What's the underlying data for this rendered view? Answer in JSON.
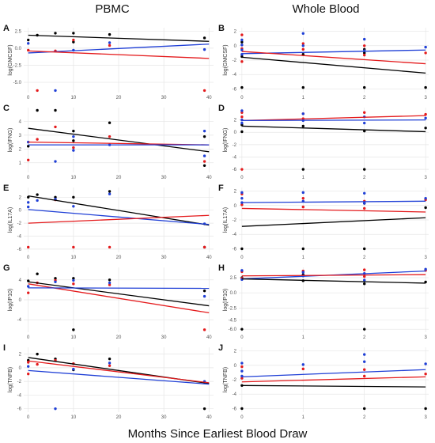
{
  "column_titles": [
    "PBMC",
    "Whole Blood"
  ],
  "x_axis_title": "Months Since Earliest Blood Draw",
  "colors": {
    "black": "#000000",
    "red": "#e41a1c",
    "blue": "#1f3fd6"
  },
  "chart_data": [
    {
      "panel": "A",
      "type": "scatter",
      "ylabel": "log(GMCSF)",
      "xlim": [
        -1,
        41
      ],
      "ylim": [
        -6.5,
        3
      ],
      "xticks": [
        0,
        10,
        20,
        30,
        40
      ],
      "yticks": [
        -5.0,
        -2.5,
        0.0,
        2.5
      ],
      "ytick_labels": [
        "-5.0",
        "-2.5",
        "0.0",
        "2.5"
      ],
      "lines": [
        {
          "color": "black",
          "x": [
            0,
            40
          ],
          "y": [
            1.9,
            1.0
          ]
        },
        {
          "color": "blue",
          "x": [
            0,
            40
          ],
          "y": [
            -0.7,
            0.6
          ]
        },
        {
          "color": "red",
          "x": [
            0,
            40
          ],
          "y": [
            -0.4,
            -1.5
          ]
        }
      ],
      "points": [
        {
          "color": "black",
          "x": [
            0,
            2,
            6,
            10,
            10,
            18,
            39
          ],
          "y": [
            1.2,
            1.9,
            2.2,
            2.2,
            0.9,
            2.0,
            1.5
          ]
        },
        {
          "color": "red",
          "x": [
            0,
            2,
            6,
            10,
            18,
            39
          ],
          "y": [
            -0.3,
            -6.2,
            -0.4,
            1.2,
            0.4,
            -6.2
          ]
        },
        {
          "color": "blue",
          "x": [
            0,
            6,
            10,
            18,
            39
          ],
          "y": [
            0.7,
            -6.2,
            -0.3,
            0.8,
            -0.2
          ]
        }
      ]
    },
    {
      "panel": "B",
      "type": "scatter",
      "ylabel": "log(GMCSF)",
      "xlim": [
        -0.05,
        3.05
      ],
      "ylim": [
        -6.5,
        2.5
      ],
      "xticks": [
        0,
        1,
        2,
        3
      ],
      "yticks": [
        -6,
        -4,
        -2,
        0,
        2
      ],
      "ytick_labels": [
        "-6",
        "-4",
        "-2",
        "0",
        "2"
      ],
      "lines": [
        {
          "color": "blue",
          "x": [
            0,
            3
          ],
          "y": [
            -1.1,
            -0.6
          ]
        },
        {
          "color": "red",
          "x": [
            0,
            3
          ],
          "y": [
            -0.8,
            -2.5
          ]
        },
        {
          "color": "black",
          "x": [
            0,
            3
          ],
          "y": [
            -1.6,
            -3.8
          ]
        }
      ],
      "points": [
        {
          "color": "black",
          "x": [
            0,
            0,
            0,
            1,
            1,
            2,
            2,
            2,
            3
          ],
          "y": [
            -5.8,
            -1.5,
            0.5,
            -5.8,
            -1.2,
            -5.8,
            -0.5,
            -1.0,
            -5.8
          ]
        },
        {
          "color": "red",
          "x": [
            0,
            0,
            0,
            1,
            1,
            2,
            2,
            3
          ],
          "y": [
            1.5,
            -0.4,
            -2.2,
            0.3,
            -0.5,
            0.0,
            -1.3,
            -1.0
          ]
        },
        {
          "color": "blue",
          "x": [
            0,
            0,
            0,
            0,
            1,
            1,
            2,
            2,
            3
          ],
          "y": [
            0.8,
            0.1,
            -0.6,
            -1.2,
            1.7,
            0.0,
            0.9,
            -0.7,
            -0.2
          ]
        }
      ]
    },
    {
      "panel": "C",
      "type": "scatter",
      "ylabel": "log(IFNG)",
      "xlim": [
        -1,
        41
      ],
      "ylim": [
        0.3,
        5
      ],
      "xticks": [
        0,
        10,
        20,
        30,
        40
      ],
      "yticks": [
        1,
        2,
        3,
        4
      ],
      "ytick_labels": [
        "1",
        "2",
        "3",
        "4"
      ],
      "lines": [
        {
          "color": "black",
          "x": [
            0,
            40
          ],
          "y": [
            3.5,
            1.8
          ]
        },
        {
          "color": "red",
          "x": [
            0,
            40
          ],
          "y": [
            2.5,
            2.3
          ]
        },
        {
          "color": "blue",
          "x": [
            0,
            40
          ],
          "y": [
            2.3,
            2.3
          ]
        }
      ],
      "points": [
        {
          "color": "black",
          "x": [
            0,
            2,
            6,
            10,
            10,
            18,
            39,
            39
          ],
          "y": [
            2.2,
            4.8,
            4.8,
            3.3,
            2.6,
            3.9,
            2.9,
            0.8
          ]
        },
        {
          "color": "red",
          "x": [
            0,
            2,
            6,
            10,
            18,
            39
          ],
          "y": [
            1.2,
            2.7,
            3.6,
            2.1,
            2.9,
            1.1
          ]
        },
        {
          "color": "blue",
          "x": [
            0,
            6,
            10,
            10,
            18,
            39,
            39
          ],
          "y": [
            2.5,
            1.1,
            2.9,
            1.9,
            2.3,
            3.3,
            1.5
          ]
        }
      ]
    },
    {
      "panel": "D",
      "type": "scatter",
      "ylabel": "log(IFNG)",
      "xlim": [
        -0.05,
        3.05
      ],
      "ylim": [
        -6.5,
        4
      ],
      "xticks": [
        0,
        1,
        2,
        3
      ],
      "yticks": [
        -6,
        -4,
        -2,
        0,
        2
      ],
      "ytick_labels": [
        "-6",
        "-4",
        "-2",
        "0",
        "2"
      ],
      "lines": [
        {
          "color": "red",
          "x": [
            0,
            3
          ],
          "y": [
            1.9,
            2.7
          ]
        },
        {
          "color": "blue",
          "x": [
            0,
            3
          ],
          "y": [
            1.9,
            2.0
          ]
        },
        {
          "color": "black",
          "x": [
            0,
            3
          ],
          "y": [
            1.0,
            0.1
          ]
        }
      ],
      "points": [
        {
          "color": "black",
          "x": [
            0,
            0,
            1,
            1,
            2,
            2,
            3
          ],
          "y": [
            1.2,
            0.1,
            -6.0,
            1.0,
            -6.0,
            0.2,
            0.7
          ]
        },
        {
          "color": "red",
          "x": [
            0,
            0,
            0,
            1,
            1,
            2,
            3
          ],
          "y": [
            -6.0,
            3.2,
            2.5,
            3.0,
            2.2,
            3.2,
            2.9
          ]
        },
        {
          "color": "blue",
          "x": [
            0,
            0,
            0,
            1,
            1,
            2,
            2,
            3
          ],
          "y": [
            3.5,
            2.0,
            1.5,
            3.0,
            1.9,
            2.5,
            1.5,
            2.3
          ]
        }
      ]
    },
    {
      "panel": "E",
      "type": "scatter",
      "ylabel": "log(IL17A)",
      "xlim": [
        -1,
        41
      ],
      "ylim": [
        -6.5,
        3.5
      ],
      "xticks": [
        0,
        10,
        20,
        30,
        40
      ],
      "yticks": [
        -6,
        -4,
        -2,
        0,
        2
      ],
      "ytick_labels": [
        "-6",
        "-4",
        "-2",
        "0",
        "2"
      ],
      "lines": [
        {
          "color": "black",
          "x": [
            0,
            40
          ],
          "y": [
            2.2,
            -2.3
          ]
        },
        {
          "color": "blue",
          "x": [
            0,
            40
          ],
          "y": [
            0.1,
            -2.2
          ]
        },
        {
          "color": "red",
          "x": [
            0,
            40
          ],
          "y": [
            -2.0,
            -0.8
          ]
        }
      ],
      "points": [
        {
          "color": "black",
          "x": [
            0,
            2,
            6,
            10,
            18,
            39
          ],
          "y": [
            2.0,
            2.4,
            2.0,
            2.0,
            2.9,
            -5.7
          ]
        },
        {
          "color": "red",
          "x": [
            0,
            6,
            10,
            18,
            39
          ],
          "y": [
            -5.7,
            1.6,
            -5.7,
            -5.7,
            -5.7
          ]
        },
        {
          "color": "blue",
          "x": [
            0,
            0,
            2,
            6,
            10,
            18,
            39
          ],
          "y": [
            1.2,
            0.5,
            1.5,
            1.7,
            0.6,
            2.5,
            -2.1
          ]
        }
      ]
    },
    {
      "panel": "F",
      "type": "scatter",
      "ylabel": "log(IL17A)",
      "xlim": [
        -0.05,
        3.05
      ],
      "ylim": [
        -6.5,
        2.5
      ],
      "xticks": [
        0,
        1,
        2,
        3
      ],
      "yticks": [
        -6,
        -4,
        -2,
        0,
        2
      ],
      "ytick_labels": [
        "-6",
        "-4",
        "-2",
        "0",
        "2"
      ],
      "lines": [
        {
          "color": "blue",
          "x": [
            0,
            3
          ],
          "y": [
            0.4,
            0.6
          ]
        },
        {
          "color": "red",
          "x": [
            0,
            3
          ],
          "y": [
            -0.4,
            -0.9
          ]
        },
        {
          "color": "black",
          "x": [
            0,
            3
          ],
          "y": [
            -2.9,
            -1.7
          ]
        }
      ],
      "points": [
        {
          "color": "black",
          "x": [
            0,
            1,
            2,
            2,
            3
          ],
          "y": [
            -6.0,
            -6.0,
            -6.0,
            0.3,
            -0.3
          ]
        },
        {
          "color": "red",
          "x": [
            0,
            0,
            1,
            1,
            2,
            2,
            3
          ],
          "y": [
            1.6,
            0.1,
            1.0,
            -0.2,
            0.6,
            -0.4,
            0.8
          ]
        },
        {
          "color": "blue",
          "x": [
            0,
            0,
            0,
            1,
            1,
            2,
            2,
            3
          ],
          "y": [
            1.8,
            1.0,
            0.4,
            1.8,
            0.6,
            1.7,
            0.3,
            1.0
          ]
        }
      ]
    },
    {
      "panel": "G",
      "type": "scatter",
      "ylabel": "log(IP10)",
      "xlim": [
        -1,
        41
      ],
      "ylim": [
        -6.5,
        6.5
      ],
      "xticks": [
        0,
        10,
        20,
        30,
        40
      ],
      "yticks": [
        -4,
        0,
        4
      ],
      "ytick_labels": [
        "-4",
        "0",
        "4"
      ],
      "lines": [
        {
          "color": "black",
          "x": [
            0,
            40
          ],
          "y": [
            3.6,
            -1.2
          ]
        },
        {
          "color": "red",
          "x": [
            0,
            40
          ],
          "y": [
            3.2,
            -2.6
          ]
        },
        {
          "color": "blue",
          "x": [
            0,
            40
          ],
          "y": [
            2.4,
            2.3
          ]
        }
      ],
      "points": [
        {
          "color": "black",
          "x": [
            0,
            2,
            6,
            10,
            10,
            18,
            39
          ],
          "y": [
            3.8,
            5.2,
            4.3,
            4.3,
            -6.0,
            4.0,
            1.8
          ]
        },
        {
          "color": "red",
          "x": [
            0,
            2,
            6,
            10,
            18,
            39
          ],
          "y": [
            1.4,
            3.4,
            3.9,
            3.2,
            3.0,
            -6.0
          ]
        },
        {
          "color": "blue",
          "x": [
            0,
            6,
            10,
            18,
            39
          ],
          "y": [
            2.7,
            3.6,
            3.9,
            3.4,
            0.7
          ]
        }
      ]
    },
    {
      "panel": "H",
      "type": "scatter",
      "ylabel": "log(IP10)",
      "xlim": [
        -0.05,
        3.05
      ],
      "ylim": [
        -6.5,
        4.2
      ],
      "xticks": [
        0,
        1,
        2,
        3
      ],
      "yticks": [
        -6.0,
        -4.5,
        -2.5,
        0.0,
        2.5
      ],
      "ytick_labels": [
        "-6.0",
        "-4.5",
        "-2.5",
        "0.0",
        "2.5"
      ],
      "lines": [
        {
          "color": "blue",
          "x": [
            0,
            3
          ],
          "y": [
            2.3,
            3.6
          ]
        },
        {
          "color": "red",
          "x": [
            0,
            3
          ],
          "y": [
            2.8,
            3.0
          ]
        },
        {
          "color": "black",
          "x": [
            0,
            3
          ],
          "y": [
            2.3,
            1.6
          ]
        }
      ],
      "points": [
        {
          "color": "black",
          "x": [
            0,
            0,
            1,
            1,
            2,
            2,
            3
          ],
          "y": [
            -6.0,
            2.5,
            3.0,
            2.0,
            -6.0,
            1.5,
            1.8
          ]
        },
        {
          "color": "red",
          "x": [
            0,
            0,
            1,
            2,
            2,
            3
          ],
          "y": [
            3.5,
            2.4,
            3.6,
            3.8,
            2.7,
            3.7
          ]
        },
        {
          "color": "blue",
          "x": [
            0,
            0,
            1,
            1,
            2,
            2,
            3
          ],
          "y": [
            3.7,
            2.2,
            2.8,
            3.4,
            3.2,
            2.1,
            3.9
          ]
        }
      ]
    },
    {
      "panel": "I",
      "type": "scatter",
      "ylabel": "log(TNFB)",
      "xlim": [
        -1,
        41
      ],
      "ylim": [
        -6.5,
        3
      ],
      "xticks": [
        0,
        10,
        20,
        30,
        40
      ],
      "yticks": [
        -6,
        -4,
        -2,
        0,
        2
      ],
      "ytick_labels": [
        "-6",
        "-4",
        "-2",
        "0",
        "2"
      ],
      "lines": [
        {
          "color": "black",
          "x": [
            0,
            40
          ],
          "y": [
            1.5,
            -2.3
          ]
        },
        {
          "color": "red",
          "x": [
            0,
            40
          ],
          "y": [
            1.0,
            -2.2
          ]
        },
        {
          "color": "blue",
          "x": [
            0,
            40
          ],
          "y": [
            -0.4,
            -2.4
          ]
        }
      ],
      "points": [
        {
          "color": "black",
          "x": [
            0,
            2,
            6,
            10,
            18,
            39
          ],
          "y": [
            1.1,
            2.0,
            1.3,
            -0.3,
            1.3,
            -6.0
          ]
        },
        {
          "color": "red",
          "x": [
            0,
            0,
            2,
            6,
            10,
            18,
            39
          ],
          "y": [
            0.8,
            -0.9,
            0.5,
            1.1,
            0.6,
            0.3,
            -2.1
          ]
        },
        {
          "color": "blue",
          "x": [
            0,
            6,
            10,
            18,
            39
          ],
          "y": [
            0.2,
            -6.0,
            -0.2,
            0.7,
            -2.0
          ]
        }
      ]
    },
    {
      "panel": "J",
      "type": "scatter",
      "ylabel": "log(TNFB)",
      "xlim": [
        -0.05,
        3.05
      ],
      "ylim": [
        -6.5,
        2.5
      ],
      "xticks": [
        0,
        1,
        2,
        3
      ],
      "yticks": [
        -6,
        -4,
        -2,
        0,
        2
      ],
      "ytick_labels": [
        "-6",
        "-4",
        "-2",
        "0",
        "2"
      ],
      "lines": [
        {
          "color": "blue",
          "x": [
            0,
            3
          ],
          "y": [
            -1.6,
            -0.6
          ]
        },
        {
          "color": "red",
          "x": [
            0,
            3
          ],
          "y": [
            -2.3,
            -1.6
          ]
        },
        {
          "color": "black",
          "x": [
            0,
            3
          ],
          "y": [
            -2.8,
            -3.0
          ]
        }
      ],
      "points": [
        {
          "color": "black",
          "x": [
            0,
            0,
            2,
            3
          ],
          "y": [
            -6.0,
            -2.8,
            -6.0,
            -6.0
          ]
        },
        {
          "color": "red",
          "x": [
            0,
            0,
            1,
            2,
            2,
            3
          ],
          "y": [
            -0.2,
            -1.8,
            -0.5,
            -0.6,
            -1.5,
            -1.2
          ]
        },
        {
          "color": "blue",
          "x": [
            0,
            0,
            0,
            1,
            2,
            2,
            3
          ],
          "y": [
            0.3,
            -0.8,
            -1.5,
            0.1,
            1.5,
            0.5,
            0.2
          ]
        }
      ]
    }
  ]
}
